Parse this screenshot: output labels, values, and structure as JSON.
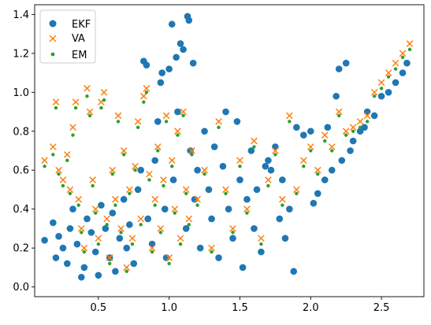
{
  "colors": {
    "EKF": "#1f77b4",
    "VA": "#ff7f0e",
    "EM": "#2ca02c",
    "axes": "#000000",
    "legend_border": "#cccccc"
  },
  "chart_data": {
    "type": "scatter",
    "title": "",
    "xlabel": "",
    "ylabel": "",
    "xlim": [
      0.05,
      2.8
    ],
    "ylim": [
      -0.05,
      1.45
    ],
    "grid": false,
    "legend_position": "top-left",
    "x_ticks": [
      {
        "value": 0.5,
        "label": "0.5"
      },
      {
        "value": 1.0,
        "label": "1.0"
      },
      {
        "value": 1.5,
        "label": "1.5"
      },
      {
        "value": 2.0,
        "label": "2.0"
      },
      {
        "value": 2.5,
        "label": "2.5"
      }
    ],
    "y_ticks": [
      {
        "value": 0.0,
        "label": "0.0"
      },
      {
        "value": 0.2,
        "label": "0.2"
      },
      {
        "value": 0.4,
        "label": "0.4"
      },
      {
        "value": 0.6,
        "label": "0.6"
      },
      {
        "value": 0.8,
        "label": "0.8"
      },
      {
        "value": 1.0,
        "label": "1.0"
      },
      {
        "value": 1.2,
        "label": "1.2"
      },
      {
        "value": 1.4,
        "label": "1.4"
      }
    ],
    "series": [
      {
        "name": "EKF",
        "marker": "circle",
        "points": [
          [
            0.12,
            0.24
          ],
          [
            0.18,
            0.33
          ],
          [
            0.2,
            0.15
          ],
          [
            0.22,
            0.26
          ],
          [
            0.25,
            0.2
          ],
          [
            0.28,
            0.12
          ],
          [
            0.3,
            0.3
          ],
          [
            0.32,
            0.4
          ],
          [
            0.35,
            0.22
          ],
          [
            0.38,
            0.05
          ],
          [
            0.4,
            0.1
          ],
          [
            0.42,
            0.35
          ],
          [
            0.45,
            0.28
          ],
          [
            0.48,
            0.18
          ],
          [
            0.5,
            0.06
          ],
          [
            0.52,
            0.42
          ],
          [
            0.55,
            0.3
          ],
          [
            0.58,
            0.15
          ],
          [
            0.6,
            0.38
          ],
          [
            0.62,
            0.08
          ],
          [
            0.65,
            0.25
          ],
          [
            0.68,
            0.45
          ],
          [
            0.7,
            0.2
          ],
          [
            0.72,
            0.32
          ],
          [
            0.75,
            0.12
          ],
          [
            0.78,
            0.5
          ],
          [
            0.8,
            0.6
          ],
          [
            0.82,
            1.16
          ],
          [
            0.84,
            1.14
          ],
          [
            0.85,
            0.35
          ],
          [
            0.88,
            0.22
          ],
          [
            0.9,
            0.65
          ],
          [
            0.92,
            0.85
          ],
          [
            0.94,
            1.05
          ],
          [
            0.95,
            1.1
          ],
          [
            0.97,
            0.4
          ],
          [
            0.98,
            0.15
          ],
          [
            1.0,
            1.12
          ],
          [
            1.02,
            1.35
          ],
          [
            1.03,
            0.55
          ],
          [
            1.05,
            1.18
          ],
          [
            1.06,
            0.9
          ],
          [
            1.08,
            1.25
          ],
          [
            1.1,
            1.22
          ],
          [
            1.12,
            0.3
          ],
          [
            1.13,
            1.39
          ],
          [
            1.14,
            1.37
          ],
          [
            1.15,
            0.7
          ],
          [
            1.17,
            1.15
          ],
          [
            1.18,
            0.45
          ],
          [
            1.2,
            0.6
          ],
          [
            1.22,
            0.2
          ],
          [
            1.25,
            0.8
          ],
          [
            1.28,
            0.5
          ],
          [
            1.3,
            0.35
          ],
          [
            1.32,
            0.72
          ],
          [
            1.35,
            0.15
          ],
          [
            1.38,
            0.62
          ],
          [
            1.4,
            0.9
          ],
          [
            1.42,
            0.4
          ],
          [
            1.45,
            0.25
          ],
          [
            1.48,
            0.85
          ],
          [
            1.5,
            0.55
          ],
          [
            1.52,
            0.1
          ],
          [
            1.55,
            0.45
          ],
          [
            1.58,
            0.7
          ],
          [
            1.6,
            0.3
          ],
          [
            1.62,
            0.5
          ],
          [
            1.65,
            0.18
          ],
          [
            1.68,
            0.62
          ],
          [
            1.7,
            0.65
          ],
          [
            1.72,
            0.6
          ],
          [
            1.75,
            0.72
          ],
          [
            1.78,
            0.35
          ],
          [
            1.8,
            0.55
          ],
          [
            1.82,
            0.25
          ],
          [
            1.85,
            0.4
          ],
          [
            1.88,
            0.08
          ],
          [
            1.9,
            0.82
          ],
          [
            1.95,
            0.78
          ],
          [
            2.0,
            0.8
          ],
          [
            2.02,
            0.43
          ],
          [
            2.05,
            0.48
          ],
          [
            2.1,
            0.55
          ],
          [
            2.12,
            0.82
          ],
          [
            2.15,
            0.6
          ],
          [
            2.18,
            0.98
          ],
          [
            2.2,
            1.12
          ],
          [
            2.22,
            0.65
          ],
          [
            2.25,
            1.15
          ],
          [
            2.28,
            0.7
          ],
          [
            2.3,
            0.75
          ],
          [
            2.35,
            0.8
          ],
          [
            2.38,
            0.82
          ],
          [
            2.4,
            0.9
          ],
          [
            2.45,
            0.88
          ],
          [
            2.5,
            0.98
          ],
          [
            2.55,
            1.0
          ],
          [
            2.6,
            1.05
          ],
          [
            2.65,
            1.1
          ],
          [
            2.68,
            1.15
          ]
        ]
      },
      {
        "name": "VA",
        "marker": "x",
        "points": [
          [
            0.12,
            0.65
          ],
          [
            0.18,
            0.72
          ],
          [
            0.2,
            0.95
          ],
          [
            0.22,
            0.6
          ],
          [
            0.25,
            0.55
          ],
          [
            0.28,
            0.68
          ],
          [
            0.3,
            0.5
          ],
          [
            0.32,
            0.82
          ],
          [
            0.34,
            0.95
          ],
          [
            0.36,
            0.45
          ],
          [
            0.38,
            0.3
          ],
          [
            0.4,
            0.2
          ],
          [
            0.42,
            1.02
          ],
          [
            0.44,
            0.9
          ],
          [
            0.46,
            0.55
          ],
          [
            0.48,
            0.4
          ],
          [
            0.5,
            0.25
          ],
          [
            0.52,
            0.95
          ],
          [
            0.54,
            1.0
          ],
          [
            0.56,
            0.35
          ],
          [
            0.58,
            0.15
          ],
          [
            0.6,
            0.6
          ],
          [
            0.62,
            0.45
          ],
          [
            0.64,
            0.88
          ],
          [
            0.66,
            0.3
          ],
          [
            0.68,
            0.7
          ],
          [
            0.7,
            0.1
          ],
          [
            0.72,
            0.5
          ],
          [
            0.74,
            0.25
          ],
          [
            0.76,
            0.62
          ],
          [
            0.78,
            0.85
          ],
          [
            0.8,
            0.35
          ],
          [
            0.82,
            0.98
          ],
          [
            0.84,
            1.02
          ],
          [
            0.86,
            0.58
          ],
          [
            0.88,
            0.2
          ],
          [
            0.9,
            0.45
          ],
          [
            0.92,
            0.72
          ],
          [
            0.94,
            0.3
          ],
          [
            0.96,
            0.55
          ],
          [
            0.98,
            0.88
          ],
          [
            1.0,
            0.15
          ],
          [
            1.02,
            0.65
          ],
          [
            1.04,
            0.4
          ],
          [
            1.06,
            0.8
          ],
          [
            1.08,
            0.25
          ],
          [
            1.1,
            0.9
          ],
          [
            1.12,
            0.5
          ],
          [
            1.14,
            0.35
          ],
          [
            1.16,
            0.7
          ],
          [
            1.2,
            0.45
          ],
          [
            1.25,
            0.6
          ],
          [
            1.3,
            0.2
          ],
          [
            1.35,
            0.85
          ],
          [
            1.4,
            0.5
          ],
          [
            1.45,
            0.3
          ],
          [
            1.5,
            0.65
          ],
          [
            1.55,
            0.4
          ],
          [
            1.6,
            0.75
          ],
          [
            1.65,
            0.25
          ],
          [
            1.7,
            0.55
          ],
          [
            1.75,
            0.7
          ],
          [
            1.8,
            0.45
          ],
          [
            1.85,
            0.88
          ],
          [
            1.9,
            0.5
          ],
          [
            1.95,
            0.65
          ],
          [
            2.0,
            0.72
          ],
          [
            2.05,
            0.6
          ],
          [
            2.1,
            0.78
          ],
          [
            2.15,
            0.72
          ],
          [
            2.2,
            0.9
          ],
          [
            2.25,
            0.8
          ],
          [
            2.3,
            0.82
          ],
          [
            2.35,
            0.85
          ],
          [
            2.4,
            0.88
          ],
          [
            2.45,
            1.0
          ],
          [
            2.5,
            1.05
          ],
          [
            2.55,
            1.1
          ],
          [
            2.6,
            1.15
          ],
          [
            2.65,
            1.2
          ],
          [
            2.7,
            1.25
          ]
        ]
      },
      {
        "name": "EM",
        "marker": "dot",
        "points": [
          [
            0.12,
            0.62
          ],
          [
            0.18,
            0.68
          ],
          [
            0.2,
            0.92
          ],
          [
            0.22,
            0.58
          ],
          [
            0.25,
            0.52
          ],
          [
            0.28,
            0.65
          ],
          [
            0.3,
            0.48
          ],
          [
            0.32,
            0.78
          ],
          [
            0.34,
            0.92
          ],
          [
            0.36,
            0.42
          ],
          [
            0.38,
            0.28
          ],
          [
            0.4,
            0.18
          ],
          [
            0.42,
            0.98
          ],
          [
            0.44,
            0.88
          ],
          [
            0.46,
            0.52
          ],
          [
            0.48,
            0.38
          ],
          [
            0.5,
            0.22
          ],
          [
            0.52,
            0.92
          ],
          [
            0.54,
            0.96
          ],
          [
            0.56,
            0.32
          ],
          [
            0.58,
            0.12
          ],
          [
            0.6,
            0.58
          ],
          [
            0.62,
            0.42
          ],
          [
            0.64,
            0.85
          ],
          [
            0.66,
            0.28
          ],
          [
            0.68,
            0.68
          ],
          [
            0.7,
            0.08
          ],
          [
            0.72,
            0.48
          ],
          [
            0.74,
            0.22
          ],
          [
            0.76,
            0.6
          ],
          [
            0.78,
            0.82
          ],
          [
            0.8,
            0.32
          ],
          [
            0.82,
            0.95
          ],
          [
            0.84,
            1.0
          ],
          [
            0.86,
            0.55
          ],
          [
            0.88,
            0.18
          ],
          [
            0.9,
            0.42
          ],
          [
            0.92,
            0.7
          ],
          [
            0.94,
            0.28
          ],
          [
            0.96,
            0.52
          ],
          [
            0.98,
            0.85
          ],
          [
            1.0,
            0.12
          ],
          [
            1.02,
            0.62
          ],
          [
            1.04,
            0.38
          ],
          [
            1.06,
            0.78
          ],
          [
            1.08,
            0.22
          ],
          [
            1.1,
            0.88
          ],
          [
            1.12,
            0.48
          ],
          [
            1.14,
            0.32
          ],
          [
            1.16,
            0.68
          ],
          [
            1.2,
            0.42
          ],
          [
            1.25,
            0.58
          ],
          [
            1.3,
            0.18
          ],
          [
            1.35,
            0.82
          ],
          [
            1.4,
            0.48
          ],
          [
            1.45,
            0.28
          ],
          [
            1.5,
            0.62
          ],
          [
            1.55,
            0.38
          ],
          [
            1.6,
            0.72
          ],
          [
            1.65,
            0.22
          ],
          [
            1.7,
            0.52
          ],
          [
            1.75,
            0.68
          ],
          [
            1.8,
            0.42
          ],
          [
            1.85,
            0.85
          ],
          [
            1.9,
            0.48
          ],
          [
            1.95,
            0.62
          ],
          [
            2.0,
            0.7
          ],
          [
            2.05,
            0.58
          ],
          [
            2.1,
            0.75
          ],
          [
            2.15,
            0.7
          ],
          [
            2.2,
            0.88
          ],
          [
            2.25,
            0.78
          ],
          [
            2.3,
            0.8
          ],
          [
            2.35,
            0.82
          ],
          [
            2.4,
            0.85
          ],
          [
            2.45,
            0.98
          ],
          [
            2.5,
            1.02
          ],
          [
            2.55,
            1.08
          ],
          [
            2.6,
            1.12
          ],
          [
            2.65,
            1.18
          ],
          [
            2.7,
            1.22
          ]
        ]
      }
    ]
  }
}
